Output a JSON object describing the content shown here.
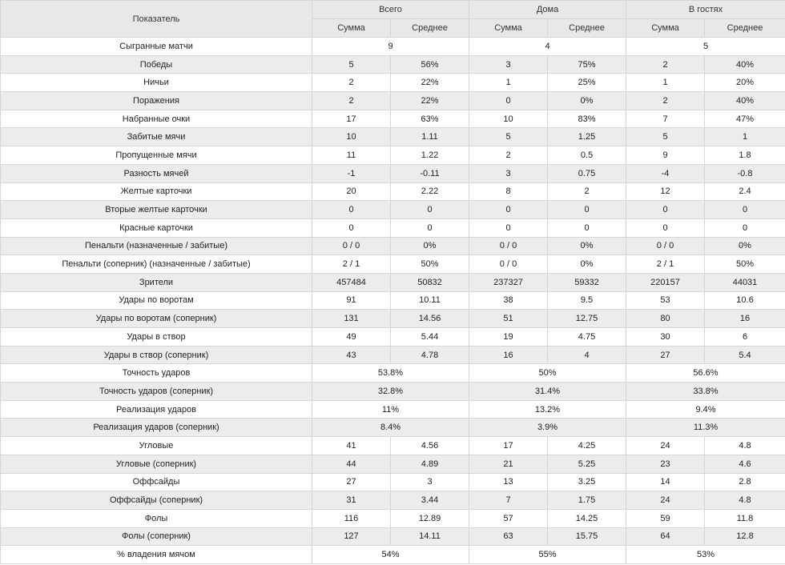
{
  "header": {
    "indicator": "Показатель",
    "groups": [
      "Всего",
      "Дома",
      "В гостях"
    ],
    "sum": "Сумма",
    "avg": "Среднее"
  },
  "rows": [
    {
      "label": "Сыгранные матчи",
      "merged": true,
      "values": [
        "9",
        "4",
        "5"
      ]
    },
    {
      "label": "Победы",
      "values": [
        "5",
        "56%",
        "3",
        "75%",
        "2",
        "40%"
      ]
    },
    {
      "label": "Ничьи",
      "values": [
        "2",
        "22%",
        "1",
        "25%",
        "1",
        "20%"
      ]
    },
    {
      "label": "Поражения",
      "values": [
        "2",
        "22%",
        "0",
        "0%",
        "2",
        "40%"
      ]
    },
    {
      "label": "Набранные очки",
      "values": [
        "17",
        "63%",
        "10",
        "83%",
        "7",
        "47%"
      ]
    },
    {
      "label": "Забитые мячи",
      "values": [
        "10",
        "1.11",
        "5",
        "1.25",
        "5",
        "1"
      ]
    },
    {
      "label": "Пропущенные мячи",
      "values": [
        "11",
        "1.22",
        "2",
        "0.5",
        "9",
        "1.8"
      ]
    },
    {
      "label": "Разность мячей",
      "values": [
        "-1",
        "-0.11",
        "3",
        "0.75",
        "-4",
        "-0.8"
      ]
    },
    {
      "label": "Желтые карточки",
      "values": [
        "20",
        "2.22",
        "8",
        "2",
        "12",
        "2.4"
      ]
    },
    {
      "label": "Вторые желтые карточки",
      "values": [
        "0",
        "0",
        "0",
        "0",
        "0",
        "0"
      ]
    },
    {
      "label": "Красные карточки",
      "values": [
        "0",
        "0",
        "0",
        "0",
        "0",
        "0"
      ]
    },
    {
      "label": "Пенальти (назначенные / забитые)",
      "values": [
        "0 / 0",
        "0%",
        "0 / 0",
        "0%",
        "0 / 0",
        "0%"
      ]
    },
    {
      "label": "Пенальти (соперник) (назначенные / забитые)",
      "values": [
        "2 / 1",
        "50%",
        "0 / 0",
        "0%",
        "2 / 1",
        "50%"
      ]
    },
    {
      "label": "Зрители",
      "values": [
        "457484",
        "50832",
        "237327",
        "59332",
        "220157",
        "44031"
      ]
    },
    {
      "label": "Удары по воротам",
      "values": [
        "91",
        "10.11",
        "38",
        "9.5",
        "53",
        "10.6"
      ]
    },
    {
      "label": "Удары по воротам (соперник)",
      "values": [
        "131",
        "14.56",
        "51",
        "12.75",
        "80",
        "16"
      ]
    },
    {
      "label": "Удары в створ",
      "values": [
        "49",
        "5.44",
        "19",
        "4.75",
        "30",
        "6"
      ]
    },
    {
      "label": "Удары в створ (соперник)",
      "values": [
        "43",
        "4.78",
        "16",
        "4",
        "27",
        "5.4"
      ]
    },
    {
      "label": "Точность ударов",
      "merged": true,
      "values": [
        "53.8%",
        "50%",
        "56.6%"
      ]
    },
    {
      "label": "Точность ударов (соперник)",
      "merged": true,
      "values": [
        "32.8%",
        "31.4%",
        "33.8%"
      ]
    },
    {
      "label": "Реализация ударов",
      "merged": true,
      "values": [
        "11%",
        "13.2%",
        "9.4%"
      ]
    },
    {
      "label": "Реализация ударов (соперник)",
      "merged": true,
      "values": [
        "8.4%",
        "3.9%",
        "11.3%"
      ]
    },
    {
      "label": "Угловые",
      "values": [
        "41",
        "4.56",
        "17",
        "4.25",
        "24",
        "4.8"
      ]
    },
    {
      "label": "Угловые (соперник)",
      "values": [
        "44",
        "4.89",
        "21",
        "5.25",
        "23",
        "4.6"
      ]
    },
    {
      "label": "Оффсайды",
      "values": [
        "27",
        "3",
        "13",
        "3.25",
        "14",
        "2.8"
      ]
    },
    {
      "label": "Оффсайды (соперник)",
      "values": [
        "31",
        "3.44",
        "7",
        "1.75",
        "24",
        "4.8"
      ]
    },
    {
      "label": "Фолы",
      "values": [
        "116",
        "12.89",
        "57",
        "14.25",
        "59",
        "11.8"
      ]
    },
    {
      "label": "Фолы (соперник)",
      "values": [
        "127",
        "14.11",
        "63",
        "15.75",
        "64",
        "12.8"
      ]
    },
    {
      "label": "% владения мячом",
      "merged": true,
      "values": [
        "54%",
        "55%",
        "53%"
      ]
    }
  ]
}
